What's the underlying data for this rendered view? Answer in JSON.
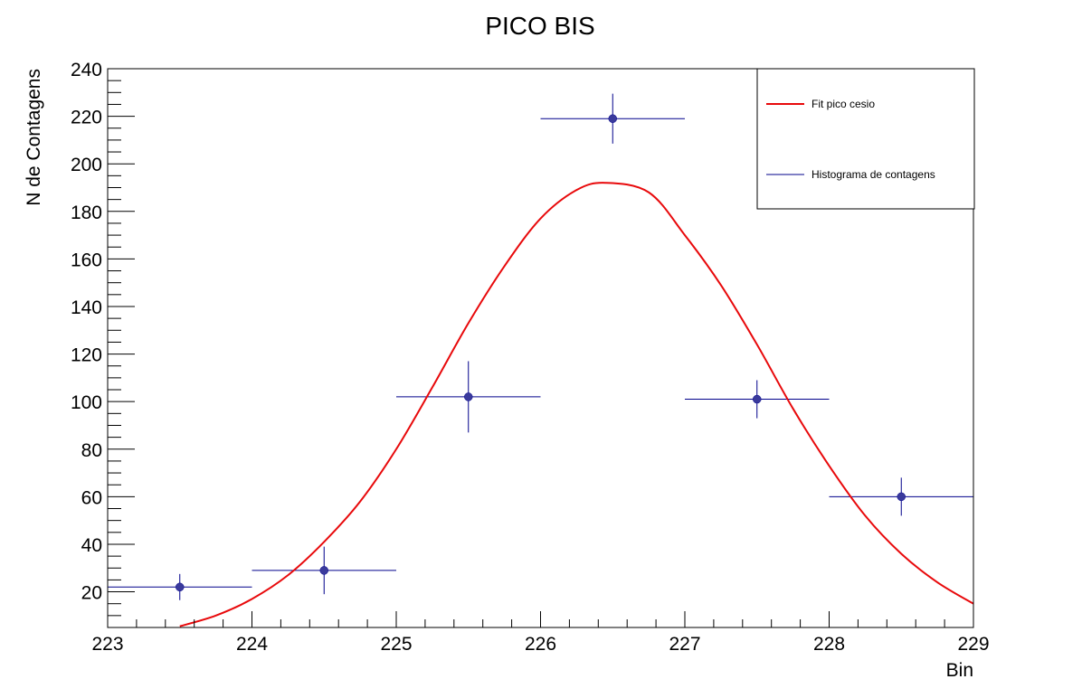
{
  "chart_data": {
    "type": "scatter",
    "title": "PICO BIS",
    "xlabel": "Bin",
    "ylabel": "N de Contagens",
    "xlim": [
      223,
      229
    ],
    "ylim": [
      5,
      240
    ],
    "xticks": [
      223,
      224,
      225,
      226,
      227,
      228,
      229
    ],
    "yticks": [
      20,
      40,
      60,
      80,
      100,
      120,
      140,
      160,
      180,
      200,
      220,
      240
    ],
    "grid": false,
    "legend_position": "top-right",
    "colors": {
      "histogram": "#00008b",
      "marker": "#3a3a9c",
      "fit": "#e8090b"
    },
    "series": [
      {
        "name": "Histograma de contagens",
        "kind": "histogram-errorbars",
        "bin_width": 1,
        "points": [
          {
            "x": 223.5,
            "y": 22,
            "yerr": 5.5
          },
          {
            "x": 224.5,
            "y": 29,
            "yerr": 10
          },
          {
            "x": 225.5,
            "y": 102,
            "yerr": 15
          },
          {
            "x": 226.5,
            "y": 219,
            "yerr": 10.5
          },
          {
            "x": 227.5,
            "y": 101,
            "yerr": 8
          },
          {
            "x": 228.5,
            "y": 60,
            "yerr": 8
          }
        ]
      },
      {
        "name": "Fit pico cesio",
        "kind": "fit-curve",
        "points": [
          [
            223.5,
            5.5
          ],
          [
            223.75,
            10
          ],
          [
            224.0,
            17
          ],
          [
            224.25,
            27
          ],
          [
            224.5,
            41
          ],
          [
            224.75,
            58
          ],
          [
            225.0,
            80
          ],
          [
            225.25,
            106
          ],
          [
            225.5,
            133
          ],
          [
            225.75,
            157
          ],
          [
            226.0,
            177
          ],
          [
            226.25,
            189
          ],
          [
            226.45,
            192
          ],
          [
            226.75,
            188
          ],
          [
            227.0,
            170
          ],
          [
            227.25,
            149
          ],
          [
            227.5,
            124
          ],
          [
            227.75,
            97
          ],
          [
            228.0,
            73
          ],
          [
            228.25,
            52
          ],
          [
            228.5,
            36
          ],
          [
            228.75,
            24
          ],
          [
            229.0,
            15
          ]
        ]
      }
    ]
  }
}
